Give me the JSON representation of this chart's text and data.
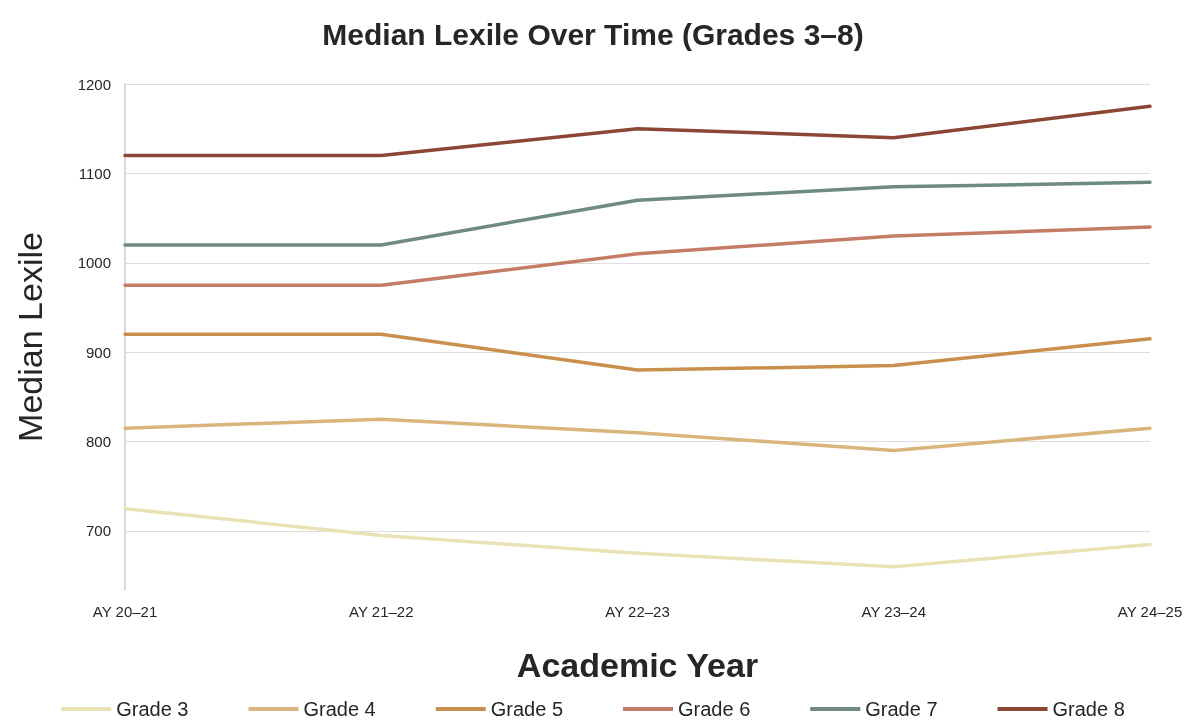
{
  "chart_data": {
    "type": "line",
    "title": "Median Lexile Over Time (Grades 3–8)",
    "xlabel": "Academic Year",
    "ylabel": "Median Lexile",
    "categories": [
      "AY 20–21",
      "AY 21–22",
      "AY 22–23",
      "AY 23–24",
      "AY 24–25"
    ],
    "series": [
      {
        "name": "Grade 3",
        "color": "#e8e2b4",
        "values": [
          725,
          695,
          675,
          660,
          685
        ]
      },
      {
        "name": "Grade 4",
        "color": "#d9b47c",
        "values": [
          815,
          825,
          810,
          790,
          815
        ]
      },
      {
        "name": "Grade 5",
        "color": "#c8904c",
        "values": [
          920,
          920,
          880,
          885,
          915
        ]
      },
      {
        "name": "Grade 6",
        "color": "#c57c66",
        "values": [
          975,
          975,
          1010,
          1030,
          1040
        ]
      },
      {
        "name": "Grade 7",
        "color": "#6f8a82",
        "values": [
          1020,
          1020,
          1070,
          1085,
          1090
        ]
      },
      {
        "name": "Grade 8",
        "color": "#8b4636",
        "values": [
          1120,
          1120,
          1150,
          1140,
          1175
        ]
      }
    ],
    "ylim": [
      634,
      1200
    ],
    "yticks": [
      700,
      800,
      900,
      1000,
      1100,
      1200
    ],
    "grid": "y",
    "legend": "bottom",
    "marker": "none",
    "line_style": "solid"
  }
}
